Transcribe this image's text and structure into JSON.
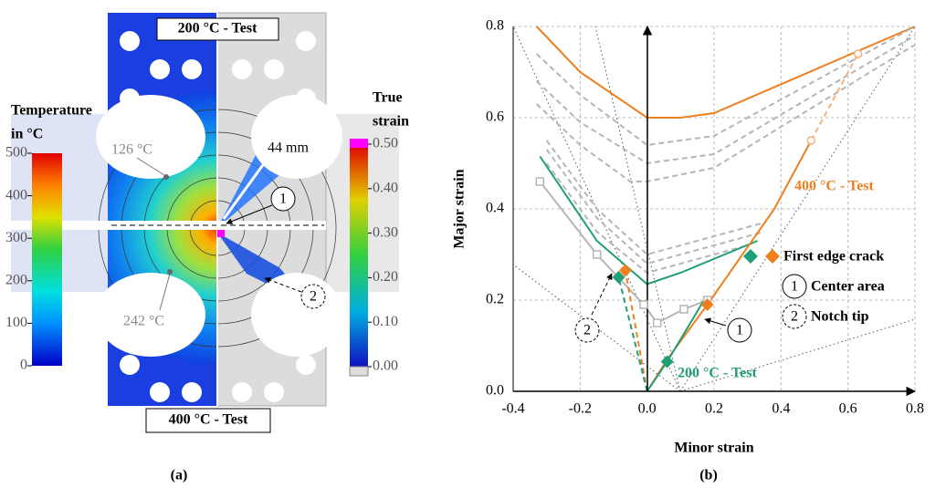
{
  "panel_a": {
    "labels": {
      "top_test": "200 °C - Test",
      "bottom_test": "400 °C - Test",
      "point_1": "126 °C",
      "point_2": "242 °C",
      "distance": "44 mm",
      "marker_1": "1",
      "marker_2": "2",
      "caption": "(a)"
    },
    "temperature_scale": {
      "title": [
        "Temperature",
        "in °C"
      ],
      "lim": [
        0,
        500
      ],
      "ticks": [
        0,
        100,
        200,
        300,
        400,
        500
      ]
    },
    "strain_scale": {
      "title": [
        "True",
        "strain"
      ],
      "lim": [
        0,
        0.5
      ],
      "ticks": [
        {
          "value": 0,
          "label": "0.00"
        },
        {
          "value": 0.1,
          "label": "0.10"
        },
        {
          "value": 0.2,
          "label": "0.20"
        },
        {
          "value": 0.3,
          "label": "0.30"
        },
        {
          "value": 0.4,
          "label": "0.40"
        },
        {
          "value": 0.5,
          "label": "0.50"
        }
      ]
    }
  },
  "chart_data": {
    "type": "line",
    "x_label": "Minor strain",
    "y_label": "Major strain",
    "caption": "(b)",
    "xlim": [
      -0.4,
      0.8
    ],
    "ylim": [
      0,
      0.8
    ],
    "xticks": [
      -0.4,
      -0.2,
      {
        "value": 0,
        "label": "0.0"
      },
      0.2,
      0.4,
      0.6,
      0.8
    ],
    "yticks": [
      {
        "value": 0,
        "label": "0.0"
      },
      0.2,
      0.4,
      0.6,
      0.8
    ],
    "grid": true,
    "annotations": {
      "hot": "400 °C - Test",
      "warm": "200 °C - Test",
      "marker_1": "1",
      "marker_2": "2"
    },
    "legend": {
      "edge_crack": "First edge crack",
      "marker_1": "1",
      "center": "Center area",
      "marker_2": "2",
      "notch": "Notch tip"
    },
    "series": [
      {
        "color": "#f07f1e",
        "dash": false,
        "x": [
          -0.33,
          -0.2,
          0,
          0.1,
          0.2,
          0.8
        ],
        "values": [
          0.8,
          0.7,
          0.6,
          0.6,
          0.61,
          0.8
        ]
      },
      {
        "color": "#b5b5b5",
        "dash": true,
        "x": [
          -0.33,
          -0.2,
          0,
          0.2,
          0.8
        ],
        "values": [
          0.74,
          0.65,
          0.54,
          0.56,
          0.8
        ]
      },
      {
        "color": "#b5b5b5",
        "dash": true,
        "x": [
          -0.33,
          -0.2,
          0,
          0.2,
          0.8
        ],
        "values": [
          0.68,
          0.59,
          0.5,
          0.52,
          0.78
        ]
      },
      {
        "color": "#b5b5b5",
        "dash": true,
        "x": [
          -0.33,
          -0.2,
          -0.05,
          0,
          0.2,
          0.8
        ],
        "values": [
          0.63,
          0.54,
          0.46,
          0.46,
          0.49,
          0.76
        ]
      },
      {
        "color": "#b5b5b5",
        "dash": true,
        "x": [
          -0.3,
          -0.15,
          0,
          0.35
        ],
        "values": [
          0.55,
          0.4,
          0.3,
          0.37
        ]
      },
      {
        "color": "#b5b5b5",
        "dash": true,
        "x": [
          -0.3,
          -0.15,
          0,
          0.35
        ],
        "values": [
          0.53,
          0.38,
          0.28,
          0.35
        ]
      },
      {
        "color": "#b5b5b5",
        "dash": true,
        "x": [
          -0.3,
          -0.15,
          0,
          0.3
        ],
        "values": [
          0.5,
          0.35,
          0.26,
          0.32
        ]
      },
      {
        "color": "#1f9e77",
        "dash": false,
        "x": [
          -0.32,
          -0.15,
          0,
          0.1,
          0.33
        ],
        "values": [
          0.515,
          0.33,
          0.235,
          0.26,
          0.33
        ]
      },
      {
        "color": "#b5b5b5",
        "dash": false,
        "marker": "square",
        "x": [
          -0.32,
          -0.15,
          -0.01,
          0.03,
          0.11,
          0.18
        ],
        "values": [
          0.46,
          0.3,
          0.19,
          0.15,
          0.18,
          0.2
        ]
      },
      {
        "color": "#f07f1e",
        "dash": false,
        "x": [
          0,
          0.06,
          0.18,
          0.38,
          0.49
        ],
        "values": [
          0,
          0.07,
          0.19,
          0.4,
          0.55
        ]
      },
      {
        "color": "#f5b27a",
        "dash": true,
        "marker": "circle",
        "x": [
          0.49,
          0.63
        ],
        "values": [
          0.55,
          0.74
        ]
      },
      {
        "color": "#1f9e77",
        "dash": false,
        "x": [
          0,
          0.06,
          0.17
        ],
        "values": [
          0,
          0.065,
          0.2
        ]
      },
      {
        "color": "#f07f1e",
        "dash": true,
        "x": [
          0,
          -0.065
        ],
        "values": [
          0,
          0.265
        ]
      },
      {
        "color": "#1f9e77",
        "dash": true,
        "x": [
          0,
          -0.085
        ],
        "values": [
          0,
          0.25
        ]
      },
      {
        "color": "#f07f1e",
        "line": false,
        "marker": "diamond",
        "x": [
          -0.065,
          0.18
        ],
        "values": [
          0.265,
          0.19
        ]
      },
      {
        "color": "#1f9e77",
        "line": false,
        "marker": "diamond",
        "x": [
          -0.085,
          0.06
        ],
        "values": [
          0.25,
          0.065
        ]
      }
    ]
  }
}
